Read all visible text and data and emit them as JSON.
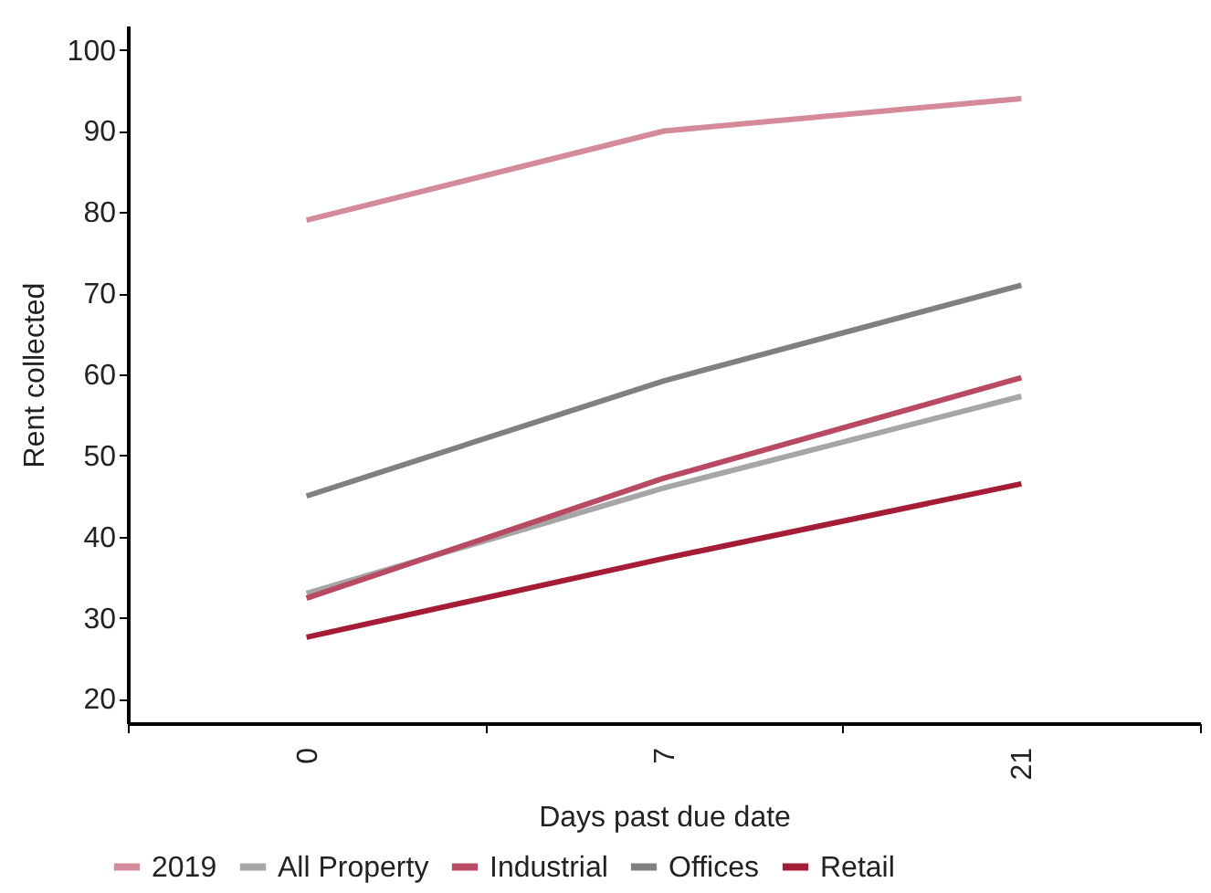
{
  "chart_data": {
    "type": "line",
    "xlabel": "Days past due date",
    "ylabel": "Rent collected",
    "categories": [
      "0",
      "7",
      "21"
    ],
    "series": [
      {
        "name": "2019",
        "color": "#d48a9b",
        "values": [
          79,
          90,
          94
        ]
      },
      {
        "name": "All Property",
        "color": "#a6a6a6",
        "values": [
          33,
          46,
          57.3
        ]
      },
      {
        "name": "Industrial",
        "color": "#b94a64",
        "values": [
          32.4,
          47.2,
          59.6
        ]
      },
      {
        "name": "Offices",
        "color": "#808080",
        "values": [
          45,
          59.2,
          71
        ]
      },
      {
        "name": "Retail",
        "color": "#a51c36",
        "values": [
          27.6,
          37.3,
          46.5
        ]
      }
    ],
    "ylim": [
      17,
      103
    ],
    "yticks": [
      20,
      30,
      40,
      50,
      60,
      70,
      80,
      90,
      100
    ],
    "grid": false,
    "legend": "bottom left",
    "marker": "none",
    "line_style": "solid"
  }
}
